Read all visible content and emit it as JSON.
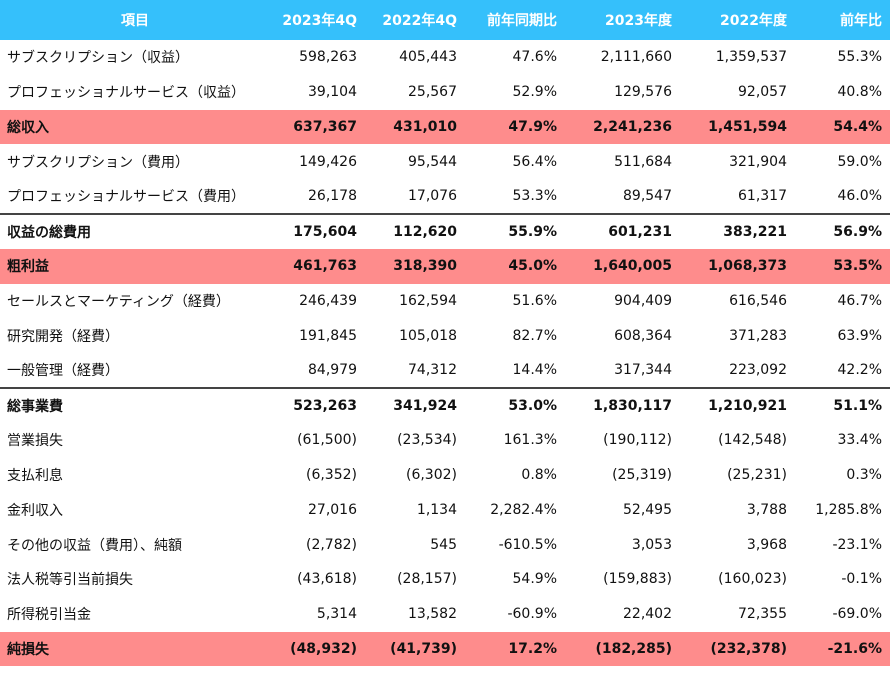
{
  "header": {
    "label": "項目",
    "columns": [
      "2023年4Q",
      "2022年4Q",
      "前年同期比",
      "2023年度",
      "2022年度",
      "前年比"
    ]
  },
  "rows": [
    {
      "label": "サブスクリプション（収益）",
      "values": [
        "598,263",
        "405,443",
        "47.6%",
        "2,111,660",
        "1,359,537",
        "55.3%"
      ],
      "style": "normal"
    },
    {
      "label": "プロフェッショナルサービス（収益）",
      "values": [
        "39,104",
        "25,567",
        "52.9%",
        "129,576",
        "92,057",
        "40.8%"
      ],
      "style": "normal"
    },
    {
      "label": "総収入",
      "values": [
        "637,367",
        "431,010",
        "47.9%",
        "2,241,236",
        "1,451,594",
        "54.4%"
      ],
      "style": "highlight"
    },
    {
      "label": "サブスクリプション（費用）",
      "values": [
        "149,426",
        "95,544",
        "56.4%",
        "511,684",
        "321,904",
        "59.0%"
      ],
      "style": "normal"
    },
    {
      "label": "プロフェッショナルサービス（費用）",
      "values": [
        "26,178",
        "17,076",
        "53.3%",
        "89,547",
        "61,317",
        "46.0%"
      ],
      "style": "normal"
    },
    {
      "label": "収益の総費用",
      "values": [
        "175,604",
        "112,620",
        "55.9%",
        "601,231",
        "383,221",
        "56.9%"
      ],
      "style": "total"
    },
    {
      "label": "粗利益",
      "values": [
        "461,763",
        "318,390",
        "45.0%",
        "1,640,005",
        "1,068,373",
        "53.5%"
      ],
      "style": "highlight"
    },
    {
      "label": "セールスとマーケティング（経費）",
      "values": [
        "246,439",
        "162,594",
        "51.6%",
        "904,409",
        "616,546",
        "46.7%"
      ],
      "style": "normal"
    },
    {
      "label": "研究開発（経費）",
      "values": [
        "191,845",
        "105,018",
        "82.7%",
        "608,364",
        "371,283",
        "63.9%"
      ],
      "style": "normal"
    },
    {
      "label": "一般管理（経費）",
      "values": [
        "84,979",
        "74,312",
        "14.4%",
        "317,344",
        "223,092",
        "42.2%"
      ],
      "style": "normal"
    },
    {
      "label": "総事業費",
      "values": [
        "523,263",
        "341,924",
        "53.0%",
        "1,830,117",
        "1,210,921",
        "51.1%"
      ],
      "style": "total"
    },
    {
      "label": "営業損失",
      "values": [
        "(61,500)",
        "(23,534)",
        "161.3%",
        "(190,112)",
        "(142,548)",
        "33.4%"
      ],
      "style": "normal"
    },
    {
      "label": "支払利息",
      "values": [
        "(6,352)",
        "(6,302)",
        "0.8%",
        "(25,319)",
        "(25,231)",
        "0.3%"
      ],
      "style": "normal"
    },
    {
      "label": "金利収入",
      "values": [
        "27,016",
        "1,134",
        "2,282.4%",
        "52,495",
        "3,788",
        "1,285.8%"
      ],
      "style": "normal"
    },
    {
      "label": "その他の収益（費用）、純額",
      "values": [
        "(2,782)",
        "545",
        "-610.5%",
        "3,053",
        "3,968",
        "-23.1%"
      ],
      "style": "normal"
    },
    {
      "label": "法人税等引当前損失",
      "values": [
        "(43,618)",
        "(28,157)",
        "54.9%",
        "(159,883)",
        "(160,023)",
        "-0.1%"
      ],
      "style": "normal"
    },
    {
      "label": "所得税引当金",
      "values": [
        "5,314",
        "13,582",
        "-60.9%",
        "22,402",
        "72,355",
        "-69.0%"
      ],
      "style": "normal"
    },
    {
      "label": "純損失",
      "values": [
        "(48,932)",
        "(41,739)",
        "17.2%",
        "(182,285)",
        "(232,378)",
        "-21.6%"
      ],
      "style": "highlight"
    }
  ],
  "colors": {
    "header_bg": "#35c0fb",
    "highlight_bg": "#fe8c8c",
    "total_border": "#444444"
  }
}
